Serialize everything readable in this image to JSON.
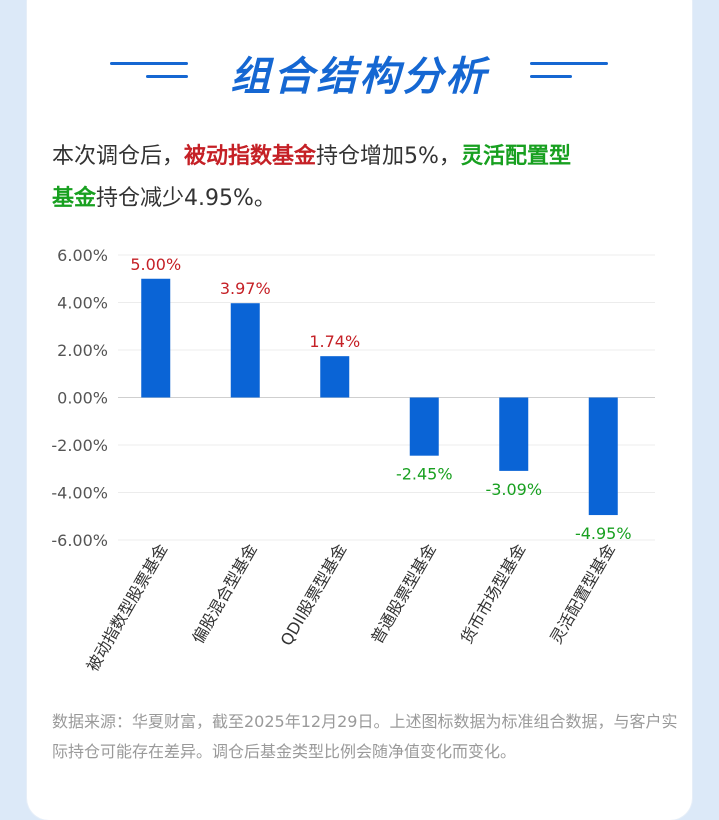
{
  "header": {
    "title": "组合结构分析"
  },
  "summary": {
    "part1": "本次调仓后，",
    "part2": "被动指数基金",
    "part3": "持仓增加5%，",
    "part4": "灵活配置型",
    "part5": "基金",
    "part6": "持仓减少4.95%。"
  },
  "colors": {
    "bar": "#0a64d6",
    "positive": "#c52026",
    "negative": "#18a020",
    "accent": "#1567d2"
  },
  "chart_data": {
    "type": "bar",
    "categories": [
      "被动指数型股票基金",
      "偏股混合型基金",
      "QDII股票型基金",
      "普通股票型基金",
      "货币市场型基金",
      "灵活配置型基金"
    ],
    "values": [
      5.0,
      3.97,
      1.74,
      -2.45,
      -3.09,
      -4.95
    ],
    "data_labels": [
      "5.00%",
      "3.97%",
      "1.74%",
      "-2.45%",
      "-3.09%",
      "-4.95%"
    ],
    "y_ticks": [
      "6.00%",
      "4.00%",
      "2.00%",
      "0.00%",
      "-2.00%",
      "-4.00%",
      "-6.00%"
    ],
    "ylim": [
      -6,
      6
    ],
    "grid": true
  },
  "footnote": {
    "text": "数据来源：华夏财富，截至2025年12月29日。上述图标数据为标准组合数据，与客户实际持仓可能存在差异。调仓后基金类型比例会随净值变化而变化。"
  }
}
